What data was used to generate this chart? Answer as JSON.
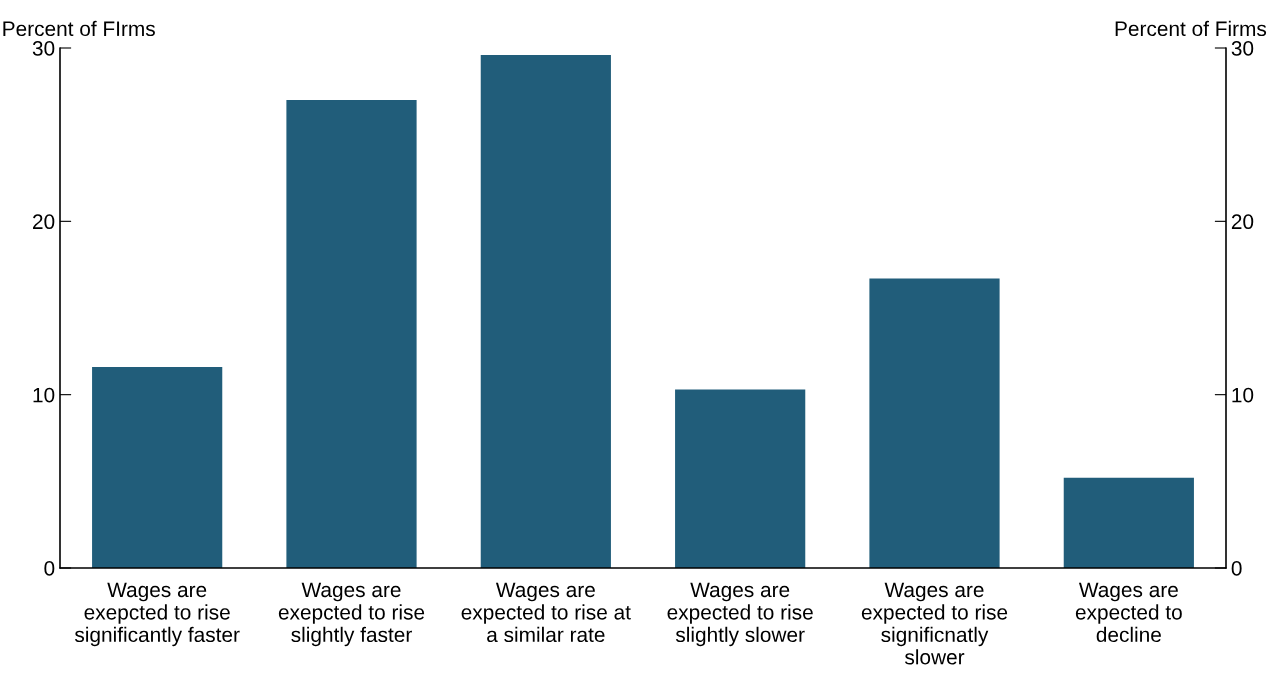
{
  "chart_data": {
    "type": "bar",
    "categories": [
      "Wages are\nexepcted to rise\nsignificantly faster",
      "Wages are\nexepcted to rise\nslightly faster",
      "Wages are\nexpected to rise at\na similar rate",
      "Wages are\nexpected to rise\nslightly slower",
      "Wages are\nexpected to rise\nsignificnatly\nslower",
      "Wages are\nexpected to\ndecline"
    ],
    "values": [
      11.6,
      27.0,
      29.6,
      10.3,
      16.7,
      5.2
    ],
    "color": "#215d7a",
    "ylabel": "Percent of FIrms",
    "y2label": "Percent of Firms",
    "ylim": [
      0,
      30
    ],
    "yticks": [
      0,
      10,
      20,
      30
    ],
    "y2lim": [
      0,
      30
    ],
    "y2ticks": [
      0,
      10,
      20,
      30
    ],
    "grid": false,
    "legend": false
  }
}
